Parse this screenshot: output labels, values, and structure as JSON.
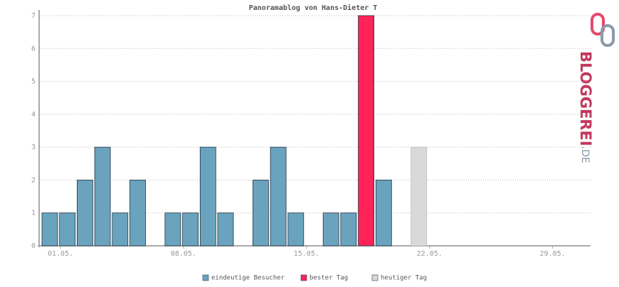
{
  "chart_data": {
    "type": "bar",
    "title": "Panoramablog von Hans-Dieter T",
    "categories": [
      "01.05.",
      null,
      null,
      null,
      null,
      null,
      null,
      "08.05.",
      null,
      null,
      null,
      null,
      null,
      null,
      "15.05.",
      null,
      null,
      null,
      null,
      null,
      null,
      "22.05.",
      null,
      null,
      null,
      null,
      null,
      null,
      "29.05.",
      null,
      null
    ],
    "series": [
      {
        "name": "eindeutige Besucher",
        "color": "#6aa3bd",
        "values": [
          1,
          1,
          2,
          3,
          1,
          2,
          0,
          1,
          1,
          3,
          1,
          0,
          2,
          3,
          1,
          0,
          1,
          1,
          null,
          2,
          0,
          null,
          null,
          null,
          null,
          null,
          null,
          null,
          null,
          null,
          null
        ]
      },
      {
        "name": "bester Tag",
        "color": "#ff2358",
        "values": [
          null,
          null,
          null,
          null,
          null,
          null,
          null,
          null,
          null,
          null,
          null,
          null,
          null,
          null,
          null,
          null,
          null,
          null,
          7,
          null,
          null,
          null,
          null,
          null,
          null,
          null,
          null,
          null,
          null,
          null,
          null
        ]
      },
      {
        "name": "heutiger Tag",
        "color": "#d9d9d9",
        "values": [
          null,
          null,
          null,
          null,
          null,
          null,
          null,
          null,
          null,
          null,
          null,
          null,
          null,
          null,
          null,
          null,
          null,
          null,
          null,
          null,
          null,
          3,
          null,
          null,
          null,
          null,
          null,
          null,
          null,
          null,
          null
        ]
      }
    ],
    "ylim": [
      0,
      7
    ],
    "yticks": [
      0,
      1,
      2,
      3,
      4,
      5,
      6,
      7
    ],
    "grid": true,
    "logo": {
      "name": "BLOGGEREI",
      "tld": ".DE"
    }
  }
}
